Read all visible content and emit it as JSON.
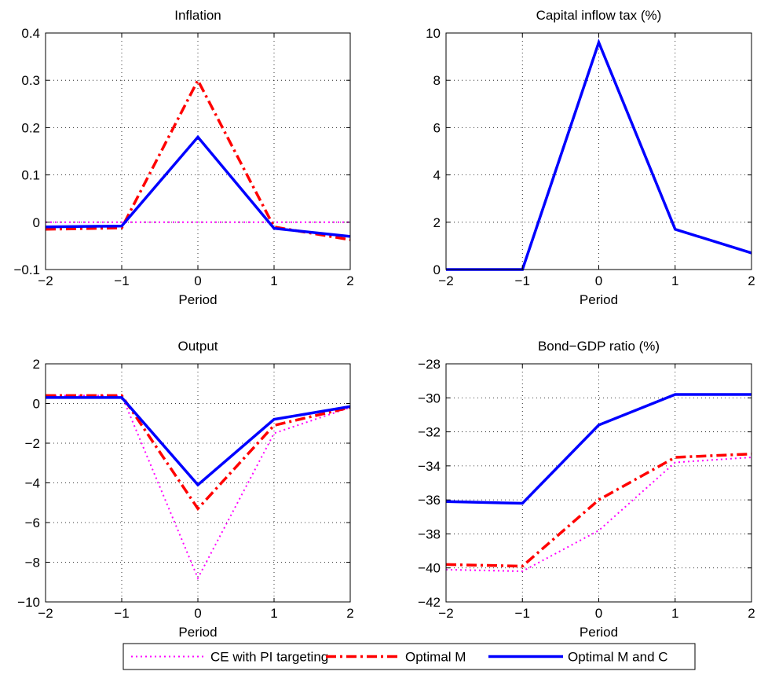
{
  "colors": {
    "ce": "#ff00ff",
    "optimal_m": "#ff0000",
    "optimal_mc": "#0000ff",
    "grid": "#000000",
    "axes": "#000000"
  },
  "legend": {
    "placement": "bottom-center",
    "entries": [
      {
        "label": "CE with PI targeting",
        "series_key": "ce",
        "style": "dotted"
      },
      {
        "label": "Optimal M",
        "series_key": "optimal_m",
        "style": "dashdot"
      },
      {
        "label": "Optimal M and C",
        "series_key": "optimal_mc",
        "style": "solid"
      }
    ]
  },
  "chart_data": [
    {
      "type": "line",
      "title": "Inflation",
      "xlabel": "Period",
      "ylabel": "",
      "grid": true,
      "x": [
        -2,
        -1,
        0,
        1,
        2
      ],
      "xlim": [
        -2,
        2
      ],
      "ylim": [
        -0.1,
        0.4
      ],
      "xticks": [
        -2,
        -1,
        0,
        1,
        2
      ],
      "xtick_labels": [
        "−2",
        "−1",
        "0",
        "1",
        "2"
      ],
      "yticks": [
        -0.1,
        0,
        0.1,
        0.2,
        0.3,
        0.4
      ],
      "ytick_labels": [
        "−0.1",
        "0",
        "0.1",
        "0.2",
        "0.3",
        "0.4"
      ],
      "series": [
        {
          "key": "ce",
          "values": [
            0,
            0,
            0,
            0,
            0
          ]
        },
        {
          "key": "optimal_m",
          "values": [
            -0.015,
            -0.012,
            0.3,
            -0.01,
            -0.037
          ]
        },
        {
          "key": "optimal_mc",
          "values": [
            -0.01,
            -0.008,
            0.18,
            -0.013,
            -0.03
          ]
        }
      ]
    },
    {
      "type": "line",
      "title": "Capital inflow tax (%)",
      "xlabel": "Period",
      "ylabel": "",
      "grid": true,
      "x": [
        -2,
        -1,
        0,
        1,
        2
      ],
      "xlim": [
        -2,
        2
      ],
      "ylim": [
        0,
        10
      ],
      "xticks": [
        -2,
        -1,
        0,
        1,
        2
      ],
      "xtick_labels": [
        "−2",
        "−1",
        "0",
        "1",
        "2"
      ],
      "yticks": [
        0,
        2,
        4,
        6,
        8,
        10
      ],
      "ytick_labels": [
        "0",
        "2",
        "4",
        "6",
        "8",
        "10"
      ],
      "series": [
        {
          "key": "optimal_mc",
          "values": [
            0,
            0,
            9.6,
            1.7,
            0.7
          ]
        }
      ]
    },
    {
      "type": "line",
      "title": "Output",
      "xlabel": "Period",
      "ylabel": "",
      "grid": true,
      "x": [
        -2,
        -1,
        0,
        1,
        2
      ],
      "xlim": [
        -2,
        2
      ],
      "ylim": [
        -10,
        2
      ],
      "xticks": [
        -2,
        -1,
        0,
        1,
        2
      ],
      "xtick_labels": [
        "−2",
        "−1",
        "0",
        "1",
        "2"
      ],
      "yticks": [
        -10,
        -8,
        -6,
        -4,
        -2,
        0,
        2
      ],
      "ytick_labels": [
        "−10",
        "−8",
        "−6",
        "−4",
        "−2",
        "0",
        "2"
      ],
      "series": [
        {
          "key": "ce",
          "values": [
            0.4,
            0.4,
            -8.8,
            -1.5,
            -0.2
          ]
        },
        {
          "key": "optimal_m",
          "values": [
            0.4,
            0.4,
            -5.3,
            -1.1,
            -0.2
          ]
        },
        {
          "key": "optimal_mc",
          "values": [
            0.3,
            0.3,
            -4.1,
            -0.8,
            -0.15
          ]
        }
      ]
    },
    {
      "type": "line",
      "title": "Bond−GDP ratio (%)",
      "xlabel": "Period",
      "ylabel": "",
      "grid": true,
      "x": [
        -2,
        -1,
        0,
        1,
        2
      ],
      "xlim": [
        -2,
        2
      ],
      "ylim": [
        -42,
        -28
      ],
      "xticks": [
        -2,
        -1,
        0,
        1,
        2
      ],
      "xtick_labels": [
        "−2",
        "−1",
        "0",
        "1",
        "2"
      ],
      "yticks": [
        -42,
        -40,
        -38,
        -36,
        -34,
        -32,
        -30,
        -28
      ],
      "ytick_labels": [
        "−42",
        "−40",
        "−38",
        "−36",
        "−34",
        "−32",
        "−30",
        "−28"
      ],
      "series": [
        {
          "key": "ce",
          "values": [
            -40.1,
            -40.2,
            -37.8,
            -33.8,
            -33.5
          ]
        },
        {
          "key": "optimal_m",
          "values": [
            -39.8,
            -39.9,
            -36.0,
            -33.5,
            -33.3
          ]
        },
        {
          "key": "optimal_mc",
          "values": [
            -36.1,
            -36.2,
            -31.6,
            -29.8,
            -29.8
          ]
        }
      ]
    }
  ]
}
